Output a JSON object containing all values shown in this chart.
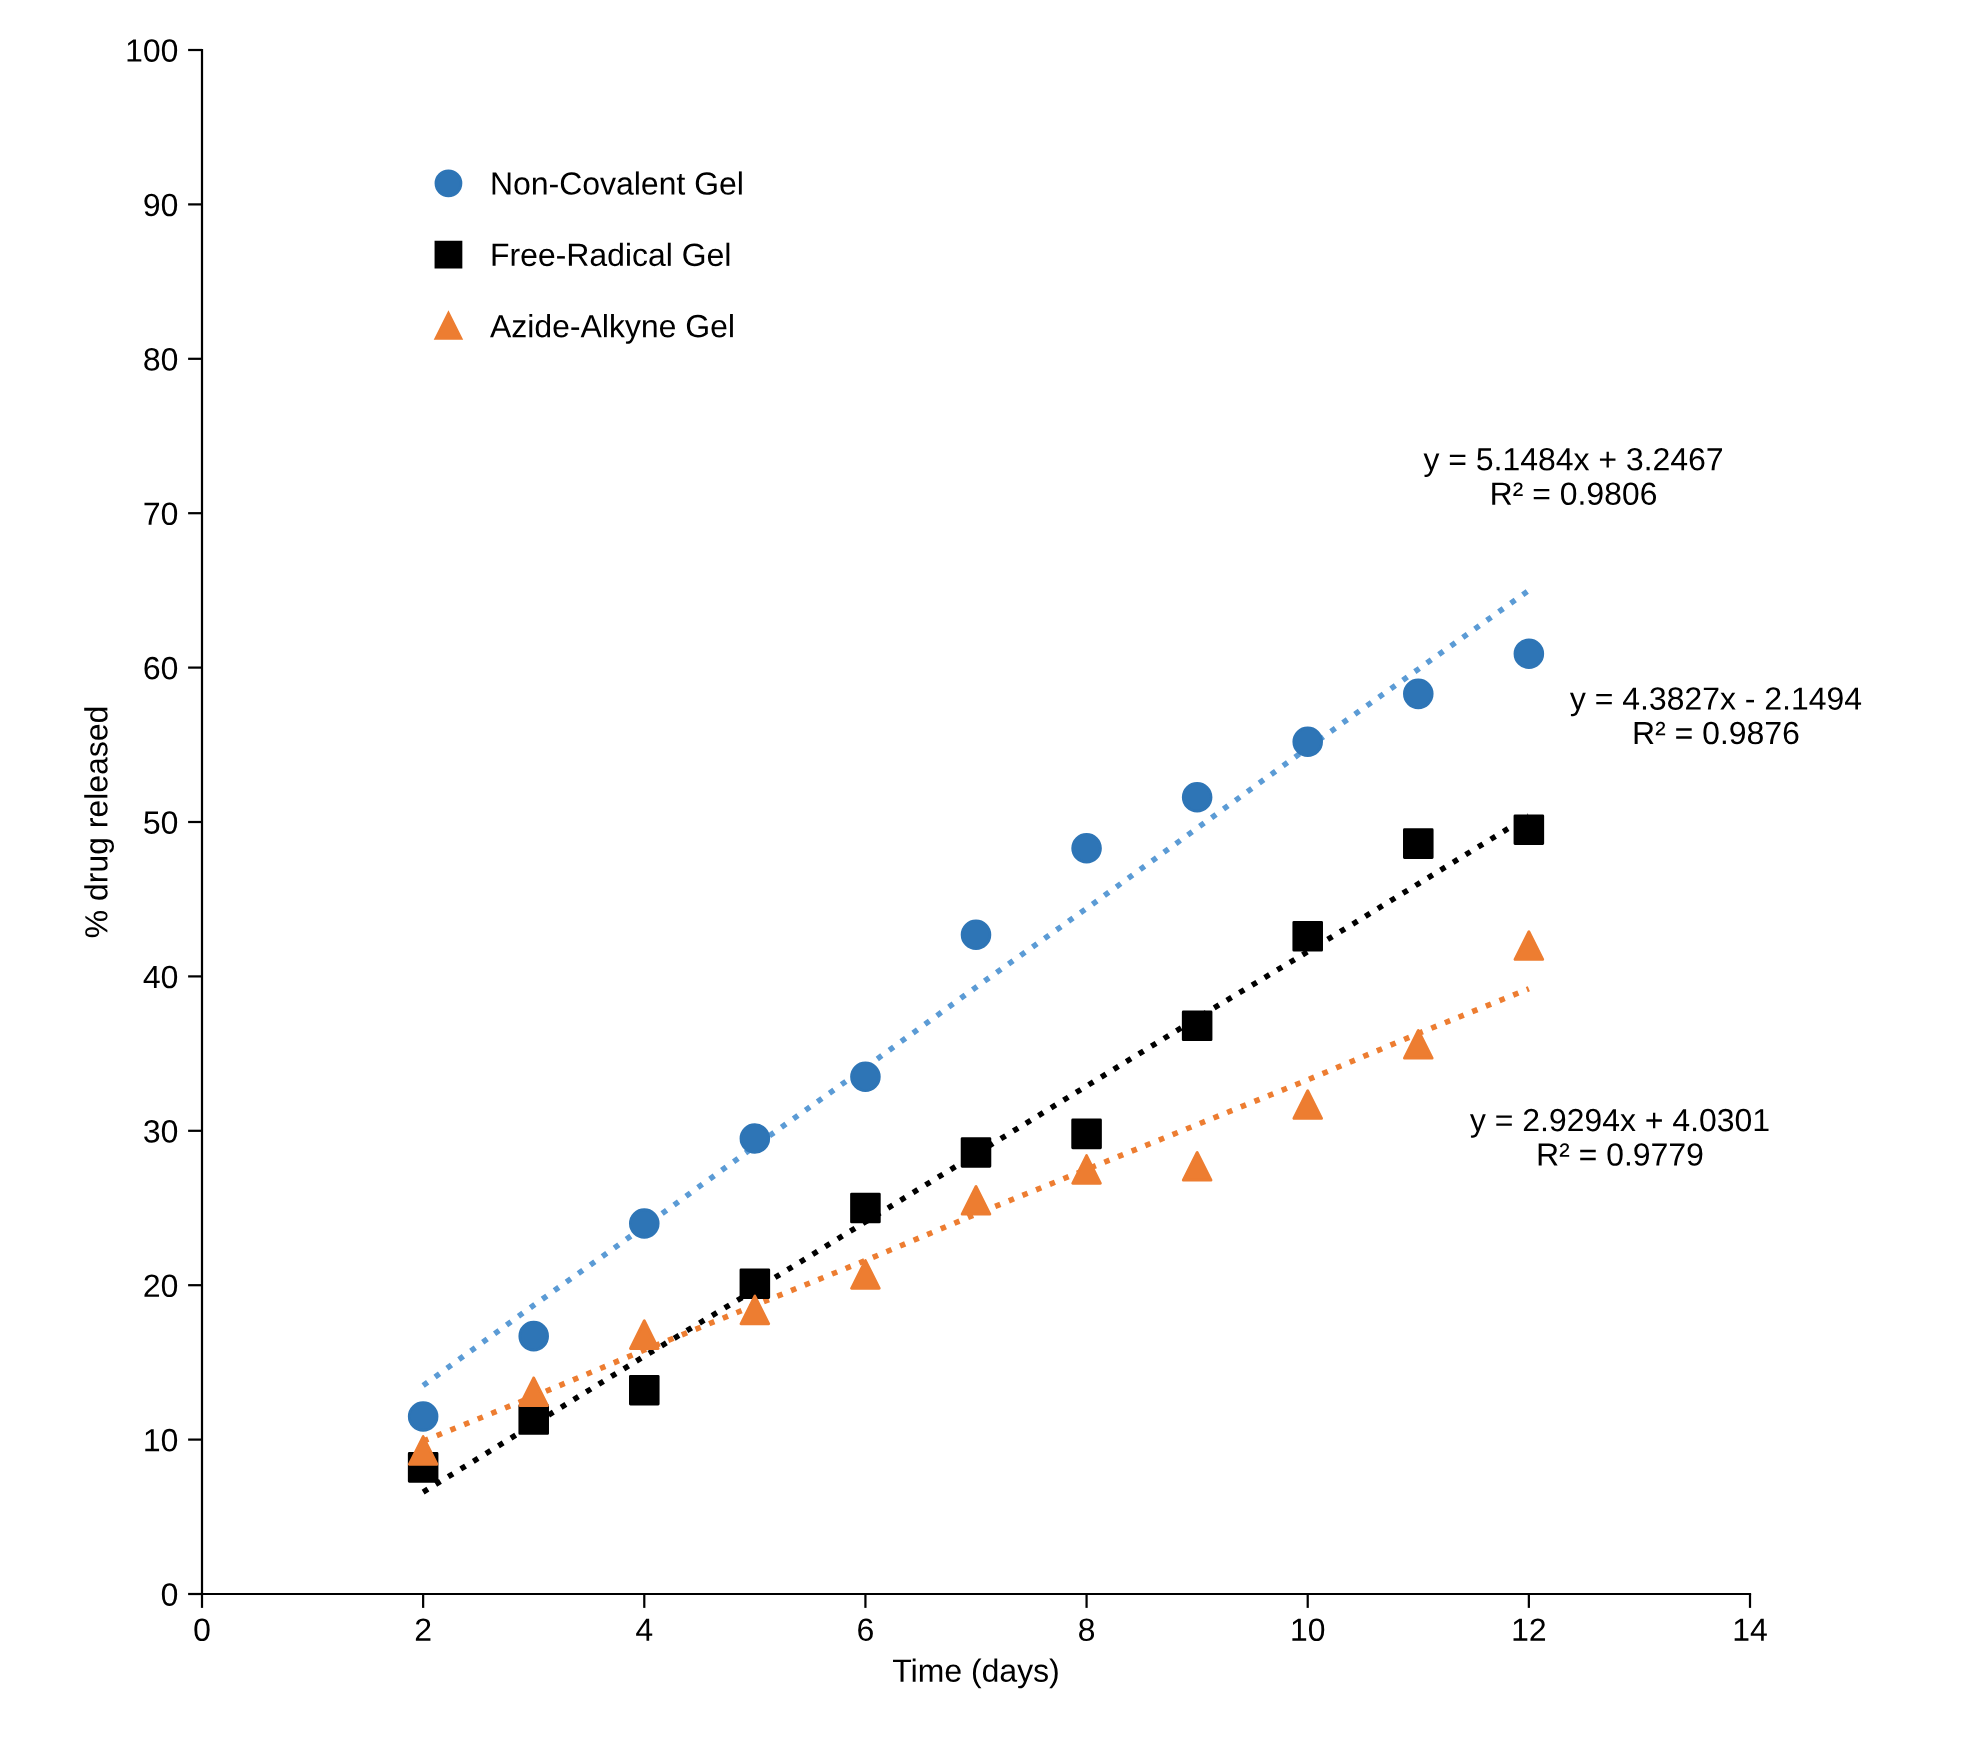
{
  "chart_data": {
    "type": "scatter",
    "xlabel": "Time (days)",
    "ylabel": "% drug released",
    "x": [
      2,
      3,
      4,
      5,
      6,
      7,
      8,
      9,
      10,
      11,
      12
    ],
    "xlim": [
      0,
      14
    ],
    "xticks": [
      0,
      2,
      4,
      6,
      8,
      10,
      12,
      14
    ],
    "ylim": [
      0,
      100
    ],
    "yticks": [
      0,
      10,
      20,
      30,
      40,
      50,
      60,
      70,
      80,
      90,
      100
    ],
    "grid": false,
    "legend": "top left",
    "series": [
      {
        "name": "Non-Covalent Gel",
        "color": "#2e75b6",
        "marker": "circle",
        "values": [
          11.5,
          16.7,
          24.0,
          29.5,
          33.5,
          42.7,
          48.3,
          51.6,
          55.2,
          58.3,
          60.9
        ]
      },
      {
        "name": "Free-Radical Gel",
        "color": "#000000",
        "marker": "square",
        "values": [
          8.2,
          11.3,
          13.2,
          20.1,
          25.0,
          28.6,
          29.8,
          36.8,
          42.6,
          48.6,
          49.5
        ]
      },
      {
        "name": "Azide-Alkyne Gel",
        "color": "#ed7d31",
        "marker": "triangle",
        "values": [
          9.3,
          13.1,
          16.8,
          18.4,
          20.7,
          25.5,
          27.5,
          27.7,
          31.7,
          35.6,
          42.0
        ]
      },
      {
        "type": "line",
        "color": "#5b9bd5",
        "line_style": "dotted",
        "marker": "none",
        "values": [
          13.5,
          18.7,
          23.8,
          29.0,
          34.1,
          39.3,
          44.4,
          49.6,
          54.8,
          59.9,
          65.0
        ]
      },
      {
        "type": "line",
        "color": "#000000",
        "line_style": "dotted",
        "marker": "none",
        "values": [
          6.6,
          11.0,
          15.4,
          19.7,
          24.1,
          28.5,
          32.9,
          37.3,
          41.6,
          46.0,
          50.4
        ]
      },
      {
        "type": "line",
        "color": "#ed7d31",
        "line_style": "dotted",
        "marker": "none",
        "values": [
          9.9,
          12.8,
          15.8,
          18.7,
          21.6,
          24.6,
          27.5,
          30.4,
          33.3,
          36.3,
          39.2
        ]
      }
    ],
    "annotations": [
      "y = 5.1484x + 3.2467\nR² = 0.9806",
      "y = 4.3827x - 2.1494\nR² = 0.9876",
      "y = 2.9294x + 4.0301\nR² = 0.9779"
    ]
  }
}
